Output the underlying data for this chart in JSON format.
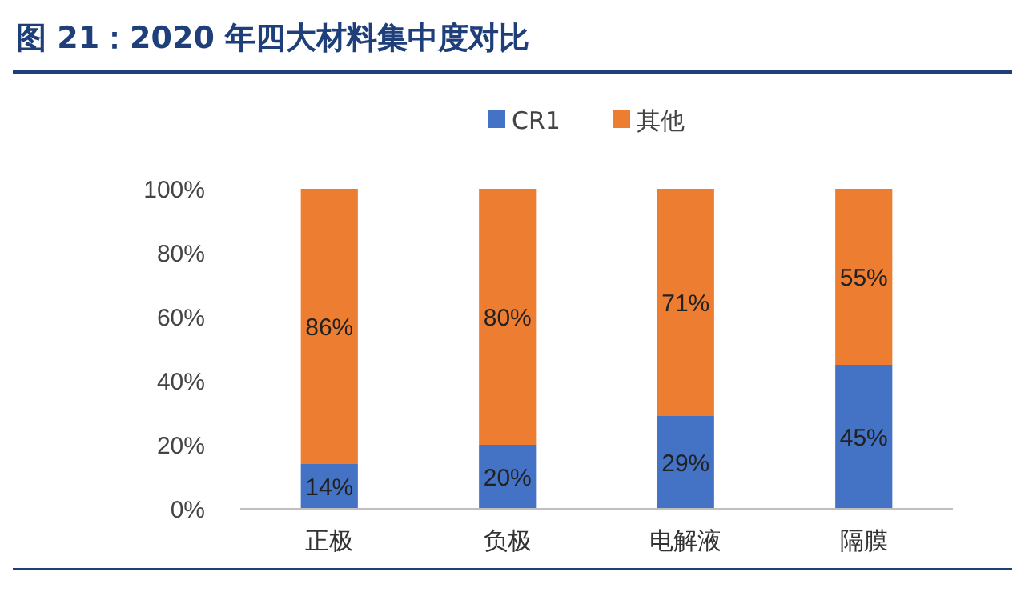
{
  "chart_data": {
    "type": "bar",
    "title": "图 21：2020 年四大材料集中度对比",
    "categories": [
      "正极",
      "负极",
      "电解液",
      "隔膜"
    ],
    "stacked": true,
    "series": [
      {
        "name": "CR1",
        "color": "#4472c4",
        "values": [
          14,
          20,
          29,
          45
        ],
        "value_labels": [
          "14%",
          "20%",
          "29%",
          "45%"
        ]
      },
      {
        "name": "其他",
        "color": "#ed7d31",
        "values": [
          86,
          80,
          71,
          55
        ],
        "value_labels": [
          "86%",
          "80%",
          "71%",
          "55%"
        ]
      }
    ],
    "ylim": [
      0,
      100
    ],
    "yticks": [
      {
        "value": 0,
        "label": "0%"
      },
      {
        "value": 20,
        "label": "20%"
      },
      {
        "value": 40,
        "label": "40%"
      },
      {
        "value": 60,
        "label": "60%"
      },
      {
        "value": 80,
        "label": "80%"
      },
      {
        "value": 100,
        "label": "100%"
      }
    ],
    "legend": "top"
  }
}
